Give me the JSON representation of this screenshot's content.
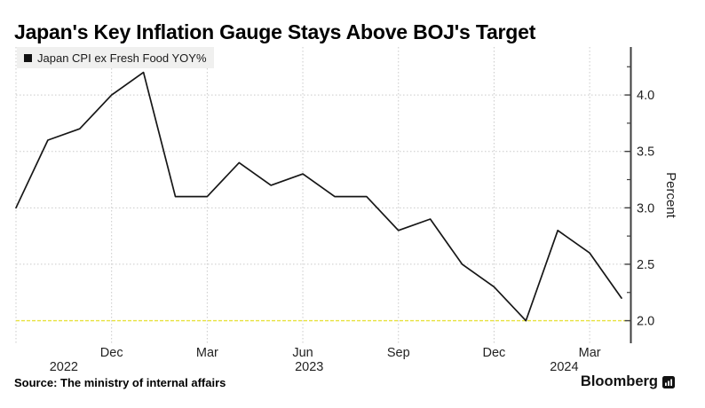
{
  "title": "Japan's Key Inflation Gauge Stays Above BOJ's Target",
  "legend": {
    "label": "Japan CPI ex Fresh Food YOY%"
  },
  "source": "Source: The ministry of internal affairs",
  "brand": {
    "name": "Bloomberg",
    "icon": "bloomberg-terminal-icon"
  },
  "colors": {
    "series_line": "#161616",
    "target_line": "#e7e13d",
    "grid": "#c9c9c9",
    "axis": "#3f3f3f",
    "legend_bg": "#f0f0ef",
    "text": "#222222"
  },
  "chart_data": {
    "type": "line",
    "title": "Japan's Key Inflation Gauge Stays Above BOJ's Target",
    "ylabel": "Percent",
    "xlabel": "",
    "grid": "dotted",
    "legend_position": "top-left",
    "x": [
      "Sep 2022",
      "Oct 2022",
      "Nov 2022",
      "Dec 2022",
      "Jan 2023",
      "Feb 2023",
      "Mar 2023",
      "Apr 2023",
      "May 2023",
      "Jun 2023",
      "Jul 2023",
      "Aug 2023",
      "Sep 2023",
      "Oct 2023",
      "Nov 2023",
      "Dec 2023",
      "Jan 2024",
      "Feb 2024",
      "Mar 2024",
      "Apr 2024"
    ],
    "series": [
      {
        "name": "Japan CPI ex Fresh Food YOY%",
        "color": "#161616",
        "values": [
          3.0,
          3.6,
          3.7,
          4.0,
          4.2,
          3.1,
          3.1,
          3.4,
          3.2,
          3.3,
          3.1,
          3.1,
          2.8,
          2.9,
          2.5,
          2.3,
          2.0,
          2.8,
          2.6,
          2.2
        ]
      }
    ],
    "target_line": {
      "value": 2.0,
      "color": "#e7e13d"
    },
    "ylim": [
      1.8,
      4.425
    ],
    "y_major_ticks": [
      2.0,
      2.5,
      3.0,
      3.5,
      4.0
    ],
    "y_minor_ticks": [
      2.25,
      2.75,
      3.25,
      3.75,
      4.25
    ],
    "y_tick_decimals": 1,
    "x_ticks": [
      {
        "label": "Dec",
        "index": 3
      },
      {
        "label": "Mar",
        "index": 6
      },
      {
        "label": "Jun",
        "index": 9
      },
      {
        "label": "Sep",
        "index": 12
      },
      {
        "label": "Dec",
        "index": 15
      },
      {
        "label": "Mar",
        "index": 18
      }
    ],
    "x_grid_indices": [
      0,
      3,
      6,
      9,
      12,
      15,
      18
    ],
    "year_labels": [
      {
        "label": "2022",
        "index": 1.5
      },
      {
        "label": "2023",
        "index": 9.2
      },
      {
        "label": "2024",
        "index": 17.2
      }
    ]
  }
}
